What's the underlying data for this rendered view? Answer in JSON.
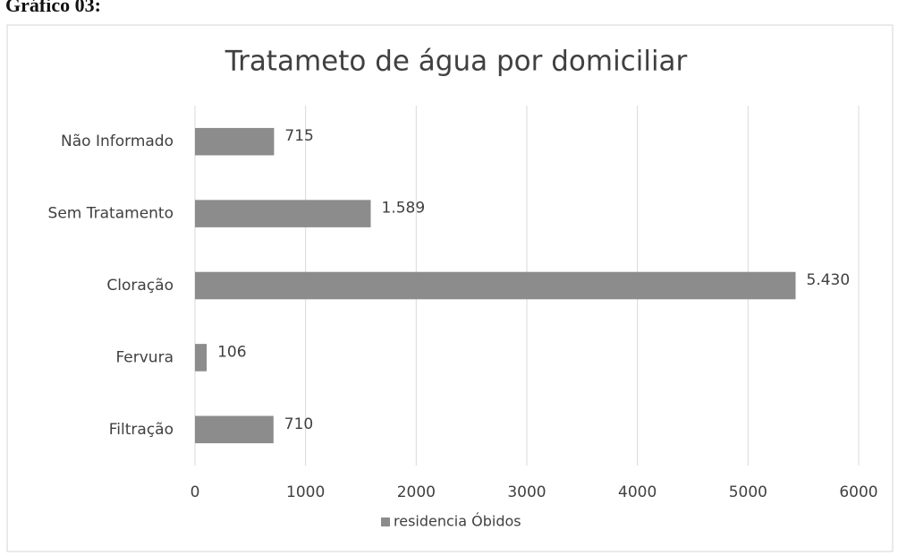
{
  "caption": "Gráfico 03:",
  "chart_data": {
    "type": "hbar",
    "title": "Tratameto de água por domiciliar",
    "categories": [
      "Não Informado",
      "Sem Tratamento",
      "Cloração",
      "Fervura",
      "Filtração"
    ],
    "series": [
      {
        "name": "residencia Óbidos",
        "color": "#8c8c8c",
        "values": [
          715,
          1589,
          5430,
          106,
          710
        ],
        "value_labels": [
          "715",
          "1.589",
          "5.430",
          "106",
          "710"
        ]
      }
    ],
    "xlim": [
      0,
      6000
    ],
    "xticks": [
      0,
      1000,
      2000,
      3000,
      4000,
      5000,
      6000
    ],
    "grid": true,
    "legend": "bottom"
  }
}
